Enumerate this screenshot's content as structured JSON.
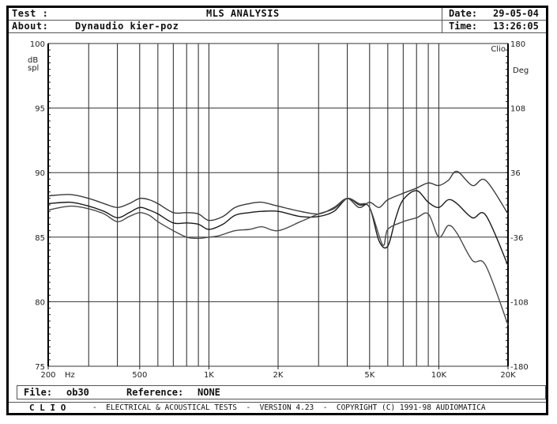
{
  "header": {
    "test_label": "Test :",
    "about_label": "About:",
    "about_value": "Dynaudio kier-poz",
    "title": "MLS ANALYSIS",
    "date_label": "Date:",
    "date_value": "29-05-04",
    "time_label": "Time:",
    "time_value": "13:26:05"
  },
  "footer": {
    "file_label": "File:",
    "file_value": "ob30",
    "reference_label": "Reference:",
    "reference_value": "NONE",
    "brand": "C L I O",
    "tagline": "-  ELECTRICAL & ACOUSTICAL TESTS  -  VERSION 4.23  -  COPYRIGHT (C) 1991-98 AUDIOMATICA"
  },
  "chart_data": {
    "type": "line",
    "title": "MLS ANALYSIS",
    "xlabel": "Hz",
    "ylabel": "dB spl",
    "y2label": "Deg",
    "corner_label": "Clio",
    "xscale": "log",
    "xlim": [
      200,
      20000
    ],
    "ylim": [
      75,
      100
    ],
    "y2lim": [
      -180,
      180
    ],
    "grid": true,
    "x_ticks": [
      {
        "value": 200,
        "label": "200"
      },
      {
        "value": 500,
        "label": "500"
      },
      {
        "value": 1000,
        "label": "1K"
      },
      {
        "value": 2000,
        "label": "2K"
      },
      {
        "value": 5000,
        "label": "5K"
      },
      {
        "value": 10000,
        "label": "10K"
      },
      {
        "value": 20000,
        "label": "20K"
      }
    ],
    "x_unit_label": "Hz",
    "x_gridlines": [
      200,
      300,
      400,
      500,
      600,
      700,
      800,
      900,
      1000,
      2000,
      3000,
      4000,
      5000,
      6000,
      7000,
      8000,
      9000,
      10000,
      20000
    ],
    "y_ticks": [
      {
        "value": 100,
        "label": "100"
      },
      {
        "value": 95,
        "label": "95"
      },
      {
        "value": 90,
        "label": "90"
      },
      {
        "value": 85,
        "label": "85"
      },
      {
        "value": 80,
        "label": "80"
      },
      {
        "value": 75,
        "label": "75"
      }
    ],
    "y2_ticks": [
      {
        "value": 180,
        "label": "180"
      },
      {
        "value": 108,
        "label": "108"
      },
      {
        "value": 36,
        "label": "36"
      },
      {
        "value": -36,
        "label": "-36"
      },
      {
        "value": -108,
        "label": "-108"
      },
      {
        "value": -180,
        "label": "-180"
      }
    ],
    "series": [
      {
        "name": "trace-upper",
        "x": [
          200,
          250,
          300,
          350,
          400,
          450,
          500,
          550,
          600,
          700,
          800,
          900,
          1000,
          1150,
          1300,
          1500,
          1700,
          2000,
          2500,
          3000,
          3500,
          4000,
          4500,
          5000,
          5500,
          6000,
          7000,
          8000,
          9000,
          10000,
          11000,
          12000,
          14000,
          16000,
          20000
        ],
        "y": [
          88.2,
          88.3,
          88.0,
          87.6,
          87.3,
          87.6,
          88.0,
          87.9,
          87.6,
          86.9,
          86.9,
          86.8,
          86.3,
          86.6,
          87.3,
          87.6,
          87.7,
          87.4,
          87.0,
          86.8,
          87.3,
          88.0,
          87.3,
          87.7,
          87.3,
          87.9,
          88.4,
          88.8,
          89.2,
          89.0,
          89.4,
          90.1,
          89.0,
          89.4,
          86.8
        ]
      },
      {
        "name": "trace-middle",
        "x": [
          200,
          250,
          300,
          350,
          400,
          450,
          500,
          550,
          600,
          700,
          800,
          900,
          1000,
          1150,
          1300,
          1500,
          1700,
          2000,
          2500,
          3000,
          3500,
          4000,
          4500,
          5000,
          5500,
          6000,
          6500,
          7000,
          8000,
          9000,
          10000,
          11000,
          12000,
          14000,
          16000,
          20000
        ],
        "y": [
          87.6,
          87.7,
          87.4,
          87.0,
          86.5,
          86.9,
          87.3,
          87.1,
          86.8,
          86.1,
          86.1,
          86.0,
          85.6,
          86.0,
          86.7,
          86.9,
          87.0,
          87.0,
          86.6,
          86.6,
          87.0,
          88.0,
          87.5,
          87.3,
          84.7,
          84.3,
          86.5,
          87.9,
          88.6,
          87.7,
          87.3,
          87.9,
          87.6,
          86.5,
          86.7,
          82.8
        ]
      },
      {
        "name": "trace-lower",
        "x": [
          200,
          250,
          300,
          350,
          400,
          450,
          500,
          550,
          600,
          700,
          800,
          900,
          1000,
          1100,
          1300,
          1500,
          1700,
          2000,
          2500,
          3000,
          3500,
          4000,
          4500,
          5000,
          5700,
          6000,
          7000,
          8000,
          9000,
          10000,
          11000,
          12000,
          14000,
          16000,
          20000
        ],
        "y": [
          87.1,
          87.4,
          87.2,
          86.8,
          86.2,
          86.6,
          86.9,
          86.7,
          86.2,
          85.5,
          85.0,
          84.9,
          85.0,
          85.1,
          85.5,
          85.6,
          85.8,
          85.5,
          86.2,
          86.8,
          87.2,
          88.0,
          87.6,
          87.3,
          84.4,
          85.6,
          86.2,
          86.5,
          86.8,
          85.0,
          85.9,
          85.3,
          83.2,
          82.8,
          78.2
        ]
      }
    ]
  }
}
